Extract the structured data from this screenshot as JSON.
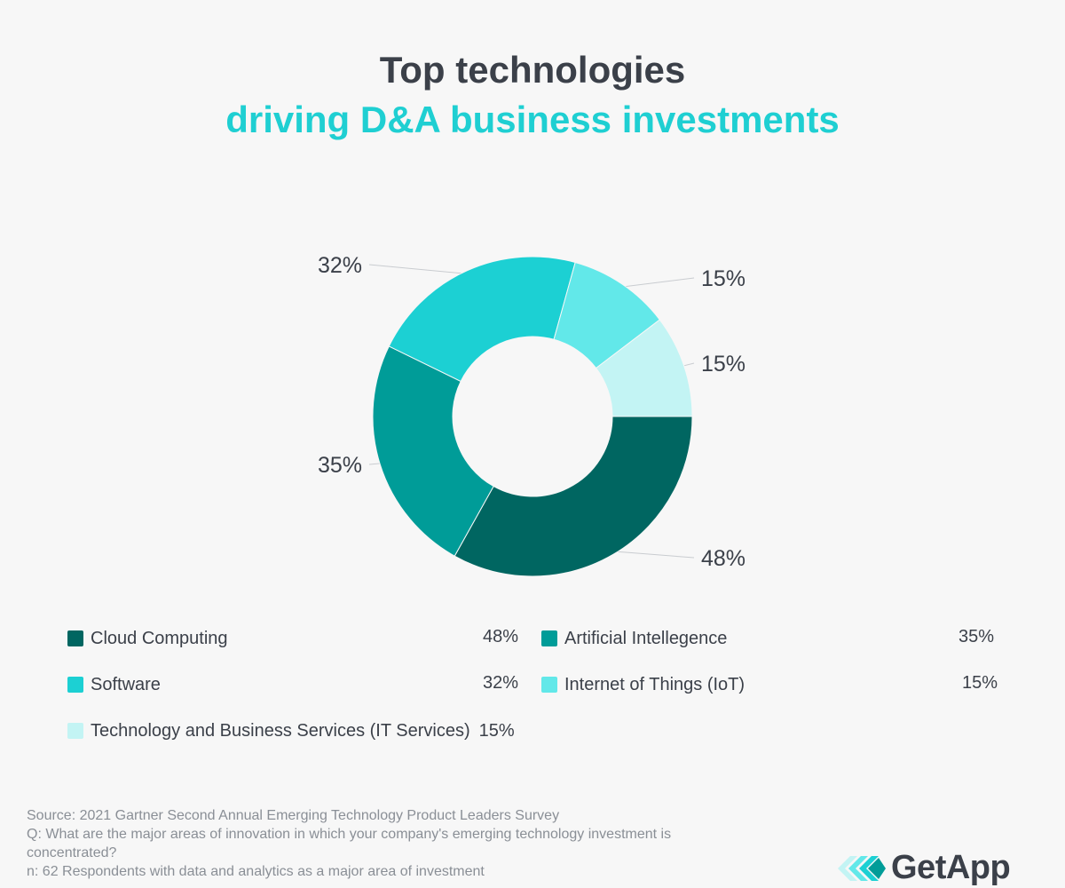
{
  "header": {
    "title_line1": "Top technologies",
    "title_line2": "driving D&A business investments"
  },
  "chart_data": {
    "type": "pie",
    "title": "Top technologies driving D&A business investments",
    "unit": "%",
    "series": [
      {
        "name": "Cloud Computing",
        "value": 48,
        "label": "48%",
        "color": "#006661"
      },
      {
        "name": "Artificial Intellegence",
        "value": 35,
        "label": "35%",
        "color": "#009c98"
      },
      {
        "name": "Software",
        "value": 32,
        "label": "32%",
        "color": "#1cd0d3"
      },
      {
        "name": "Internet of Things (IoT)",
        "value": 15,
        "label": "15%",
        "color": "#62e8e9"
      },
      {
        "name": "Technology and Business Services (IT Services)",
        "value": 15,
        "label": "15%",
        "color": "#c3f4f4"
      }
    ]
  },
  "legend": {
    "items": [
      {
        "label": "Cloud Computing",
        "value": "48%"
      },
      {
        "label": "Artificial Intellegence",
        "value": "35%"
      },
      {
        "label": "Software",
        "value": "32%"
      },
      {
        "label": "Internet of Things (IoT)",
        "value": "15%"
      },
      {
        "label": "Technology and Business Services (IT Services)",
        "value": "15%"
      }
    ]
  },
  "footer": {
    "source_line1": "Source: 2021 Gartner Second Annual Emerging Technology Product Leaders Survey",
    "source_line2": "Q: What are the major areas of innovation in which your company's emerging technology investment is concentrated?",
    "source_line3": "n: 62 Respondents with data and analytics as a major area of investment",
    "logo_text": "GetApp",
    "logo_icon": "getapp-chevrons-icon"
  }
}
